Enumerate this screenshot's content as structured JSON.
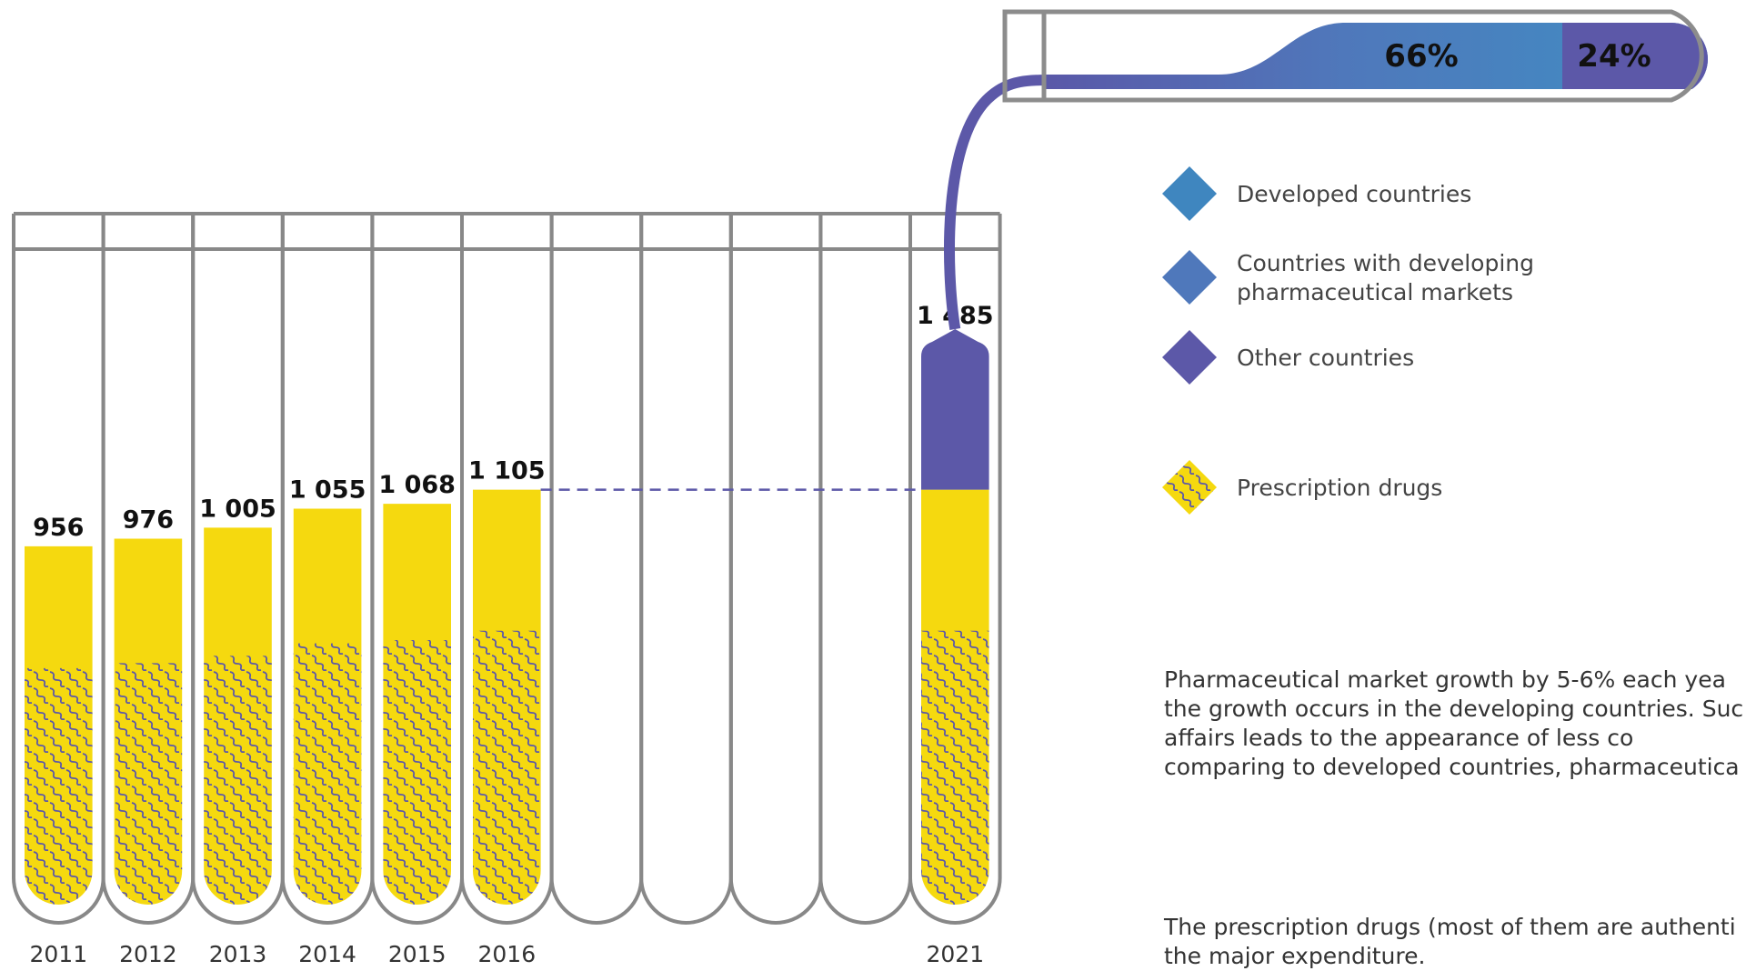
{
  "chart_data": {
    "type": "bar",
    "categories": [
      "2011",
      "2012",
      "2013",
      "2014",
      "2015",
      "2016",
      "",
      "",
      "",
      "",
      "2021"
    ],
    "values": [
      956,
      976,
      1005,
      1055,
      1068,
      1105,
      null,
      null,
      null,
      null,
      1485
    ],
    "value_labels": [
      "956",
      "976",
      "1 005",
      "1 055",
      "1 068",
      "1 105",
      "",
      "",
      "",
      "",
      "1 485"
    ],
    "ylim": [
      0,
      1485
    ],
    "prescription_share": 0.66,
    "segment_2021": {
      "base": 1105,
      "top": 1485
    },
    "share_bar": {
      "segments": [
        {
          "name": "Developed countries",
          "label": "66%",
          "color": "#3f86bf"
        },
        {
          "name": "Countries with developing pharmaceutical markets",
          "label": "",
          "color": "#4f78bb"
        },
        {
          "name": "Other countries",
          "label": "24%",
          "color": "#5c58a8"
        }
      ]
    },
    "legend": [
      {
        "label_lines": [
          "Developed countries"
        ],
        "color": "#3f86bf",
        "icon": "diamond"
      },
      {
        "label_lines": [
          "Countries with developing",
          "pharmaceutical markets"
        ],
        "color": "#4f78bb",
        "icon": "diamond"
      },
      {
        "label_lines": [
          "Other countries"
        ],
        "color": "#5c58a8",
        "icon": "diamond"
      },
      {
        "label_lines": [
          "Prescription drugs"
        ],
        "color": "#f5d90f",
        "icon": "wavy-diamond"
      }
    ],
    "colors": {
      "bar": "#f5d90f",
      "wave": "#5c58a8",
      "tube": "#888888",
      "growth": "#5c58a8"
    }
  },
  "notes": {
    "growth_lines": [
      "Pharmaceutical market growth by 5-6% each yea",
      "the growth occurs in the developing countries. Suc",
      "affairs leads to the appearance of less co",
      "comparing to developed countries, pharmaceutica"
    ],
    "prescription_lines": [
      "The prescription drugs (most of them are authenti",
      "the major expenditure."
    ]
  }
}
